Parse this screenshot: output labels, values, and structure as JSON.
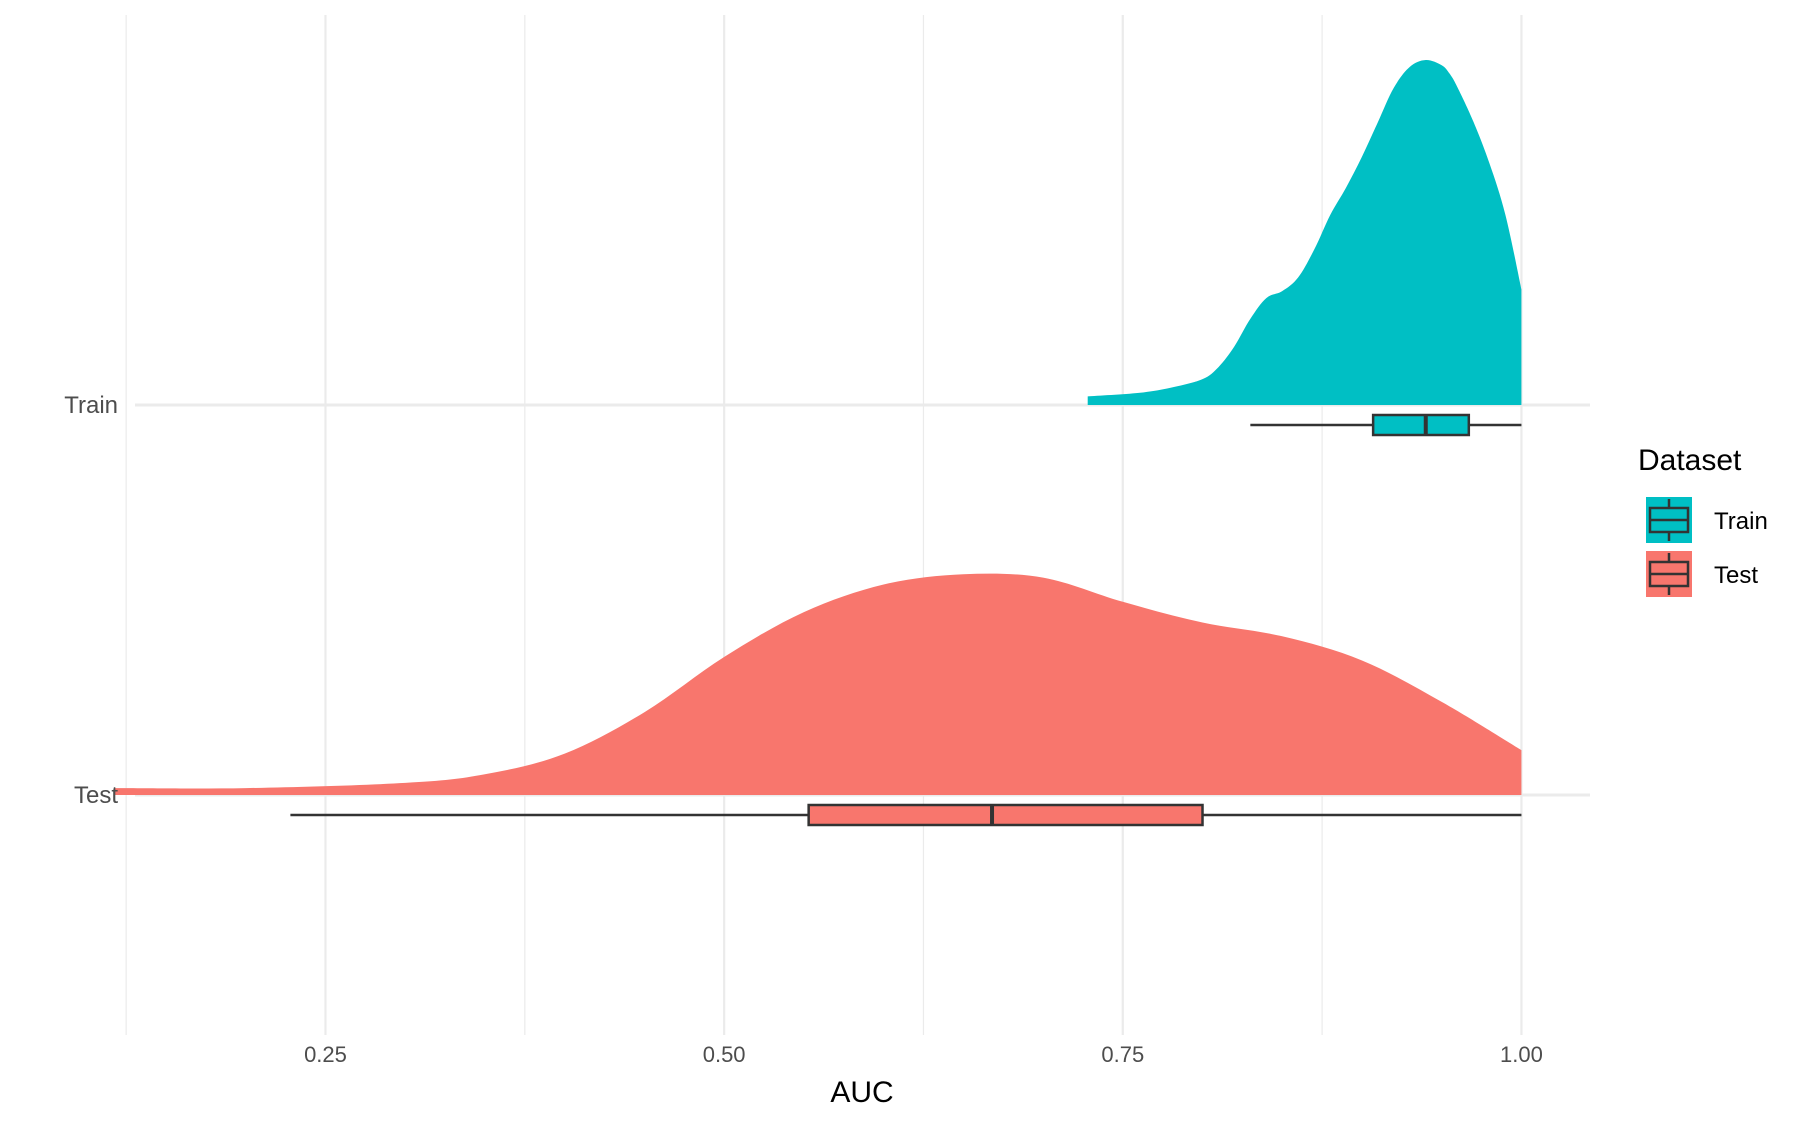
{
  "chart_data": {
    "type": "raincloud",
    "title": "",
    "xlabel": "AUC",
    "ylabel": "",
    "xlim": [
      0.118,
      1.043
    ],
    "x_ticks": [
      0.25,
      0.5,
      0.75,
      1.0
    ],
    "x_tick_labels": [
      "0.25",
      "0.50",
      "0.75",
      "1.00"
    ],
    "x_minor_ticks": [
      0.125,
      0.375,
      0.625,
      0.875
    ],
    "categories": [
      "Train",
      "Test"
    ],
    "grid": true,
    "legend": {
      "title": "Dataset",
      "placement": "right",
      "entries": [
        "Train",
        "Test"
      ]
    },
    "series": [
      {
        "name": "Train",
        "color": "#00BFC4",
        "category": "Train",
        "density": {
          "x": [
            0.728,
            0.76,
            0.78,
            0.8,
            0.81,
            0.82,
            0.83,
            0.84,
            0.85,
            0.86,
            0.87,
            0.88,
            0.89,
            0.9,
            0.91,
            0.92,
            0.93,
            0.94,
            0.95,
            0.955,
            0.96,
            0.97,
            0.98,
            0.99,
            1.0
          ],
          "y": [
            0.025,
            0.035,
            0.05,
            0.075,
            0.11,
            0.17,
            0.25,
            0.31,
            0.33,
            0.37,
            0.45,
            0.55,
            0.63,
            0.72,
            0.82,
            0.92,
            0.98,
            1.0,
            0.985,
            0.96,
            0.92,
            0.82,
            0.7,
            0.55,
            0.335
          ]
        },
        "box": {
          "min": 0.83,
          "q1": 0.907,
          "median": 0.94,
          "q3": 0.967,
          "max": 1.0
        }
      },
      {
        "name": "Test",
        "color": "#F8766D",
        "category": "Test",
        "density": {
          "x": [
            0.118,
            0.2,
            0.3,
            0.35,
            0.4,
            0.45,
            0.5,
            0.55,
            0.6,
            0.65,
            0.7,
            0.75,
            0.8,
            0.85,
            0.9,
            0.95,
            1.0
          ],
          "y": [
            0.02,
            0.02,
            0.035,
            0.06,
            0.12,
            0.24,
            0.4,
            0.53,
            0.61,
            0.64,
            0.63,
            0.56,
            0.5,
            0.46,
            0.39,
            0.27,
            0.13
          ]
        },
        "box": {
          "min": 0.228,
          "q1": 0.553,
          "median": 0.668,
          "q3": 0.8,
          "max": 1.0
        }
      }
    ]
  }
}
